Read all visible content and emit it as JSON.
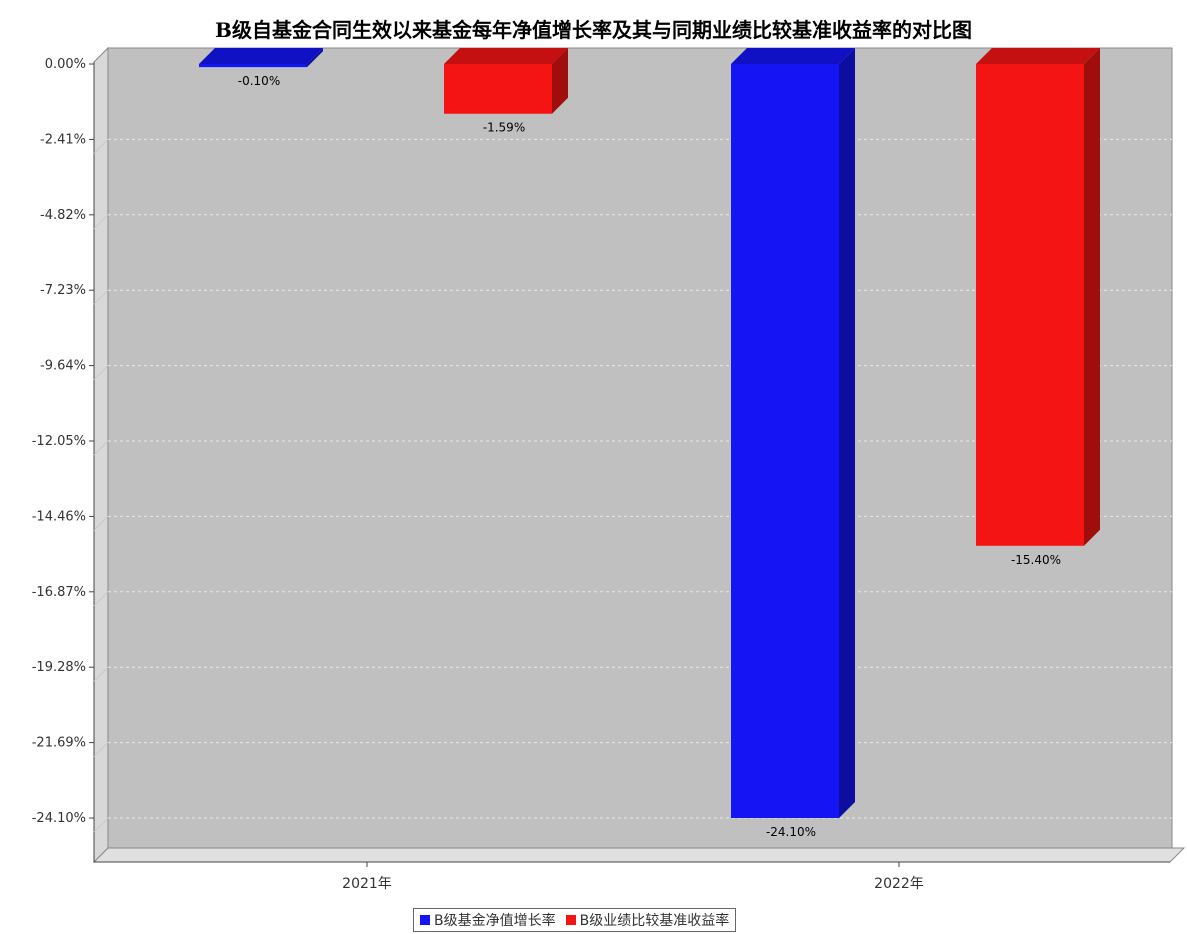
{
  "chart_data": {
    "type": "bar",
    "title": "B级自基金合同生效以来基金每年净值增长率及其与同期业绩比较基准收益率的对比图",
    "categories": [
      "2021年",
      "2022年"
    ],
    "series": [
      {
        "name": "B级基金净值增长率",
        "color": "#1414f5",
        "values": [
          -0.1,
          -24.1
        ],
        "labels": [
          "-0.10%",
          "-24.10%"
        ]
      },
      {
        "name": "B级业绩比较基准收益率",
        "color": "#f51414",
        "values": [
          -1.59,
          -15.4
        ],
        "labels": [
          "-1.59%",
          "-15.40%"
        ]
      }
    ],
    "yticks": [
      "0.00%",
      "-2.41%",
      "-4.82%",
      "-7.23%",
      "-9.64%",
      "-12.05%",
      "-14.46%",
      "-16.87%",
      "-19.28%",
      "-21.69%",
      "-24.10%"
    ],
    "ytick_values": [
      0,
      -2.41,
      -4.82,
      -7.23,
      -9.64,
      -12.05,
      -14.46,
      -16.87,
      -19.28,
      -21.69,
      -24.1
    ],
    "ylim": [
      -25.1,
      0
    ],
    "grid": true,
    "legend_position": "bottom-center",
    "plot_background": "#c0c0c0"
  }
}
